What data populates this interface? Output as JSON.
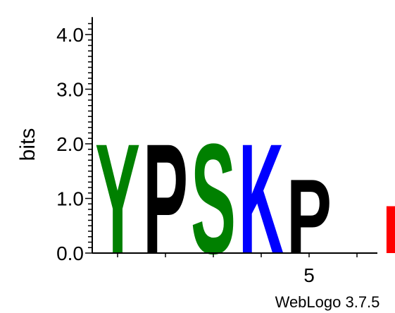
{
  "chart_data": {
    "type": "sequence-logo",
    "ylabel": "bits",
    "ylim": [
      0,
      4.32
    ],
    "yticks": [
      "0.0",
      "1.0",
      "2.0",
      "3.0",
      "4.0"
    ],
    "xticks": [
      {
        "position": 5,
        "label": "5"
      }
    ],
    "positions": [
      {
        "position": 1,
        "letter": "Y",
        "bits": 2.07,
        "color": "#008000"
      },
      {
        "position": 2,
        "letter": "P",
        "bits": 2.07,
        "color": "#000000"
      },
      {
        "position": 3,
        "letter": "S",
        "bits": 2.07,
        "color": "#008000"
      },
      {
        "position": 4,
        "letter": "K",
        "bits": 2.07,
        "color": "#0000ff"
      },
      {
        "position": 5,
        "letter": "P",
        "bits": 1.4,
        "color": "#000000"
      },
      {
        "position": 6,
        "letter": "",
        "bits": 0,
        "color": "#ffffff"
      },
      {
        "position": 7,
        "letter": "D",
        "bits": 0.9,
        "color": "#ff0000"
      }
    ],
    "footer": "WebLogo 3.7.5"
  }
}
